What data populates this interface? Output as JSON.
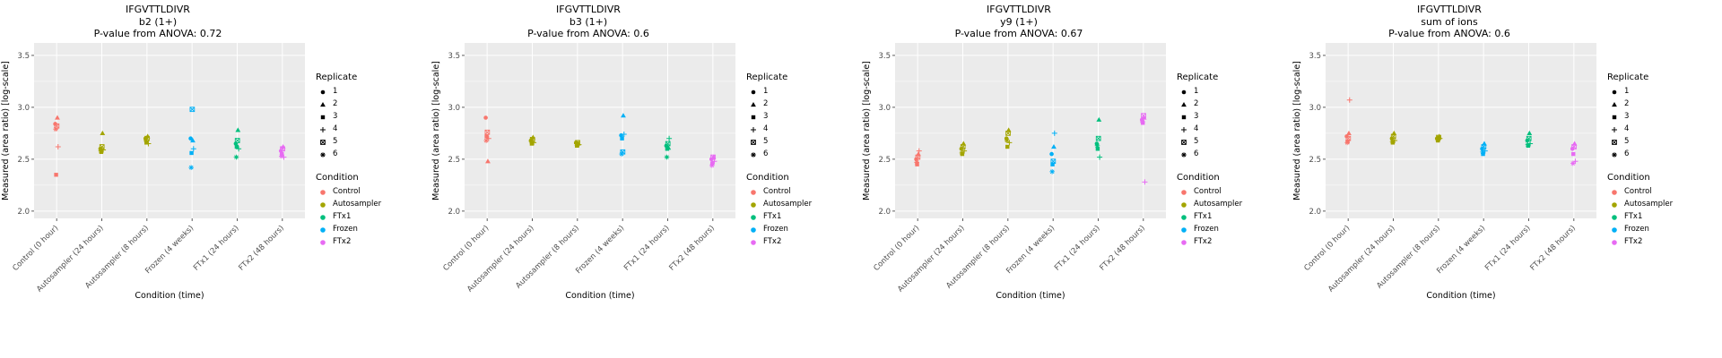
{
  "axis": {
    "y_label": "Measured (area ratio) [log-scale]",
    "x_label": "Condition (time)",
    "y_ticks": [
      2.0,
      2.5,
      3.0,
      3.5
    ],
    "y_minor_ticks": [
      2.25,
      2.75,
      3.25
    ],
    "y_domain": [
      1.93,
      3.62
    ],
    "x_categories": [
      "Control (0 hour)",
      "Autosampler (24 hours)",
      "Autosampler (8 hours)",
      "Frozen (4 weeks)",
      "FTx1 (24 hours)",
      "FTx2 (48 hours)"
    ]
  },
  "style": {
    "panel_bg": "#EBEBEB",
    "grid_color": "#FFFFFF",
    "tick_text_color": "#4D4D4D",
    "axis_text_color": "#000000"
  },
  "legend": {
    "replicate_title": "Replicate",
    "replicates": [
      {
        "label": "1",
        "shape": "circle"
      },
      {
        "label": "2",
        "shape": "triangle"
      },
      {
        "label": "3",
        "shape": "square"
      },
      {
        "label": "4",
        "shape": "plus"
      },
      {
        "label": "5",
        "shape": "square-cross"
      },
      {
        "label": "6",
        "shape": "asterisk"
      }
    ],
    "condition_title": "Condition",
    "conditions": [
      {
        "label": "Control",
        "color": "#F8766D"
      },
      {
        "label": "Autosampler",
        "color": "#A3A500"
      },
      {
        "label": "FTx1",
        "color": "#00BF7D"
      },
      {
        "label": "Frozen",
        "color": "#00B0F6"
      },
      {
        "label": "FTx2",
        "color": "#E76BF3"
      }
    ]
  },
  "chart_data": [
    {
      "type": "scatter",
      "title": "IFGVTTLDIVR",
      "subtitle": "b2 (1+)",
      "anova_label": "P-value from ANOVA: 0.72",
      "xlabel": "Condition (time)",
      "ylabel": "Measured (area ratio) [log-scale]",
      "ylim": [
        2.0,
        3.5
      ],
      "categories": [
        "Control (0 hour)",
        "Autosampler (24 hours)",
        "Autosampler (8 hours)",
        "Frozen (4 weeks)",
        "FTx1 (24 hours)",
        "FTx2 (48 hours)"
      ],
      "series": [
        {
          "condition": "Control",
          "category": "Control (0 hour)",
          "color": "#F8766D",
          "replicate_values": [
            2.84,
            2.9,
            2.35,
            2.62,
            2.82,
            2.79
          ]
        },
        {
          "condition": "Autosampler",
          "category": "Autosampler (24 hours)",
          "color": "#A3A500",
          "replicate_values": [
            2.6,
            2.75,
            2.57,
            2.59,
            2.62,
            2.58
          ]
        },
        {
          "condition": "Autosampler",
          "category": "Autosampler (8 hours)",
          "color": "#A3A500",
          "replicate_values": [
            2.7,
            2.72,
            2.66,
            2.65,
            2.7,
            2.68
          ]
        },
        {
          "condition": "Frozen",
          "category": "Frozen (4 weeks)",
          "color": "#00B0F6",
          "replicate_values": [
            2.7,
            2.68,
            2.56,
            2.6,
            2.98,
            2.42
          ]
        },
        {
          "condition": "FTx1",
          "category": "FTx1 (24 hours)",
          "color": "#00BF7D",
          "replicate_values": [
            2.65,
            2.78,
            2.62,
            2.6,
            2.68,
            2.52
          ]
        },
        {
          "condition": "FTx2",
          "category": "FTx2 (48 hours)",
          "color": "#E76BF3",
          "replicate_values": [
            2.58,
            2.62,
            2.55,
            2.52,
            2.6,
            2.53
          ]
        }
      ]
    },
    {
      "type": "scatter",
      "title": "IFGVTTLDIVR",
      "subtitle": "b3 (1+)",
      "anova_label": "P-value from ANOVA: 0.6",
      "xlabel": "Condition (time)",
      "ylabel": "Measured (area ratio) [log-scale]",
      "ylim": [
        2.0,
        3.5
      ],
      "categories": [
        "Control (0 hour)",
        "Autosampler (24 hours)",
        "Autosampler (8 hours)",
        "Frozen (4 weeks)",
        "FTx1 (24 hours)",
        "FTx2 (48 hours)"
      ],
      "series": [
        {
          "condition": "Control",
          "category": "Control (0 hour)",
          "color": "#F8766D",
          "replicate_values": [
            2.9,
            2.48,
            2.72,
            2.7,
            2.76,
            2.68
          ]
        },
        {
          "condition": "Autosampler",
          "category": "Autosampler (24 hours)",
          "color": "#A3A500",
          "replicate_values": [
            2.68,
            2.71,
            2.65,
            2.66,
            2.69,
            2.67
          ]
        },
        {
          "condition": "Autosampler",
          "category": "Autosampler (8 hours)",
          "color": "#A3A500",
          "replicate_values": [
            2.66,
            2.65,
            2.63,
            2.64,
            2.66,
            2.65
          ]
        },
        {
          "condition": "Frozen",
          "category": "Frozen (4 weeks)",
          "color": "#00B0F6",
          "replicate_values": [
            2.73,
            2.92,
            2.7,
            2.74,
            2.57,
            2.55
          ]
        },
        {
          "condition": "FTx1",
          "category": "FTx1 (24 hours)",
          "color": "#00BF7D",
          "replicate_values": [
            2.63,
            2.61,
            2.6,
            2.7,
            2.65,
            2.52
          ]
        },
        {
          "condition": "FTx2",
          "category": "FTx2 (48 hours)",
          "color": "#E76BF3",
          "replicate_values": [
            2.5,
            2.52,
            2.46,
            2.48,
            2.52,
            2.44
          ]
        }
      ]
    },
    {
      "type": "scatter",
      "title": "IFGVTTLDIVR",
      "subtitle": "y9 (1+)",
      "anova_label": "P-value from ANOVA: 0.67",
      "xlabel": "Condition (time)",
      "ylabel": "Measured (area ratio) [log-scale]",
      "ylim": [
        2.0,
        3.5
      ],
      "categories": [
        "Control (0 hour)",
        "Autosampler (24 hours)",
        "Autosampler (8 hours)",
        "Frozen (4 weeks)",
        "FTx1 (24 hours)",
        "FTx2 (48 hours)"
      ],
      "series": [
        {
          "condition": "Control",
          "category": "Control (0 hour)",
          "color": "#F8766D",
          "replicate_values": [
            2.5,
            2.55,
            2.45,
            2.58,
            2.52,
            2.47
          ]
        },
        {
          "condition": "Autosampler",
          "category": "Autosampler (24 hours)",
          "color": "#A3A500",
          "replicate_values": [
            2.6,
            2.65,
            2.55,
            2.58,
            2.62,
            2.56
          ]
        },
        {
          "condition": "Autosampler",
          "category": "Autosampler (8 hours)",
          "color": "#A3A500",
          "replicate_values": [
            2.7,
            2.78,
            2.62,
            2.66,
            2.75,
            2.68
          ]
        },
        {
          "condition": "Frozen",
          "category": "Frozen (4 weeks)",
          "color": "#00B0F6",
          "replicate_values": [
            2.55,
            2.62,
            2.45,
            2.75,
            2.48,
            2.38
          ]
        },
        {
          "condition": "FTx1",
          "category": "FTx1 (24 hours)",
          "color": "#00BF7D",
          "replicate_values": [
            2.65,
            2.88,
            2.6,
            2.52,
            2.7,
            2.63
          ]
        },
        {
          "condition": "FTx2",
          "category": "FTx2 (48 hours)",
          "color": "#E76BF3",
          "replicate_values": [
            2.88,
            2.9,
            2.85,
            2.28,
            2.92,
            2.86
          ]
        }
      ]
    },
    {
      "type": "scatter",
      "title": "IFGVTTLDIVR",
      "subtitle": "sum of ions",
      "anova_label": "P-value from ANOVA: 0.6",
      "xlabel": "Condition (time)",
      "ylabel": "Measured (area ratio) [log-scale]",
      "ylim": [
        2.0,
        3.5
      ],
      "categories": [
        "Control (0 hour)",
        "Autosampler (24 hours)",
        "Autosampler (8 hours)",
        "Frozen (4 weeks)",
        "FTx1 (24 hours)",
        "FTx2 (48 hours)"
      ],
      "series": [
        {
          "condition": "Control",
          "category": "Control (0 hour)",
          "color": "#F8766D",
          "replicate_values": [
            2.72,
            2.75,
            2.67,
            3.07,
            2.7,
            2.66
          ]
        },
        {
          "condition": "Autosampler",
          "category": "Autosampler (24 hours)",
          "color": "#A3A500",
          "replicate_values": [
            2.7,
            2.75,
            2.66,
            2.68,
            2.72,
            2.67
          ]
        },
        {
          "condition": "Autosampler",
          "category": "Autosampler (8 hours)",
          "color": "#A3A500",
          "replicate_values": [
            2.7,
            2.72,
            2.68,
            2.7,
            2.71,
            2.69
          ]
        },
        {
          "condition": "Frozen",
          "category": "Frozen (4 weeks)",
          "color": "#00B0F6",
          "replicate_values": [
            2.6,
            2.65,
            2.55,
            2.58,
            2.62,
            2.57
          ]
        },
        {
          "condition": "FTx1",
          "category": "FTx1 (24 hours)",
          "color": "#00BF7D",
          "replicate_values": [
            2.68,
            2.75,
            2.63,
            2.65,
            2.7,
            2.64
          ]
        },
        {
          "condition": "FTx2",
          "category": "FTx2 (48 hours)",
          "color": "#E76BF3",
          "replicate_values": [
            2.6,
            2.65,
            2.55,
            2.48,
            2.62,
            2.46
          ]
        }
      ]
    }
  ]
}
